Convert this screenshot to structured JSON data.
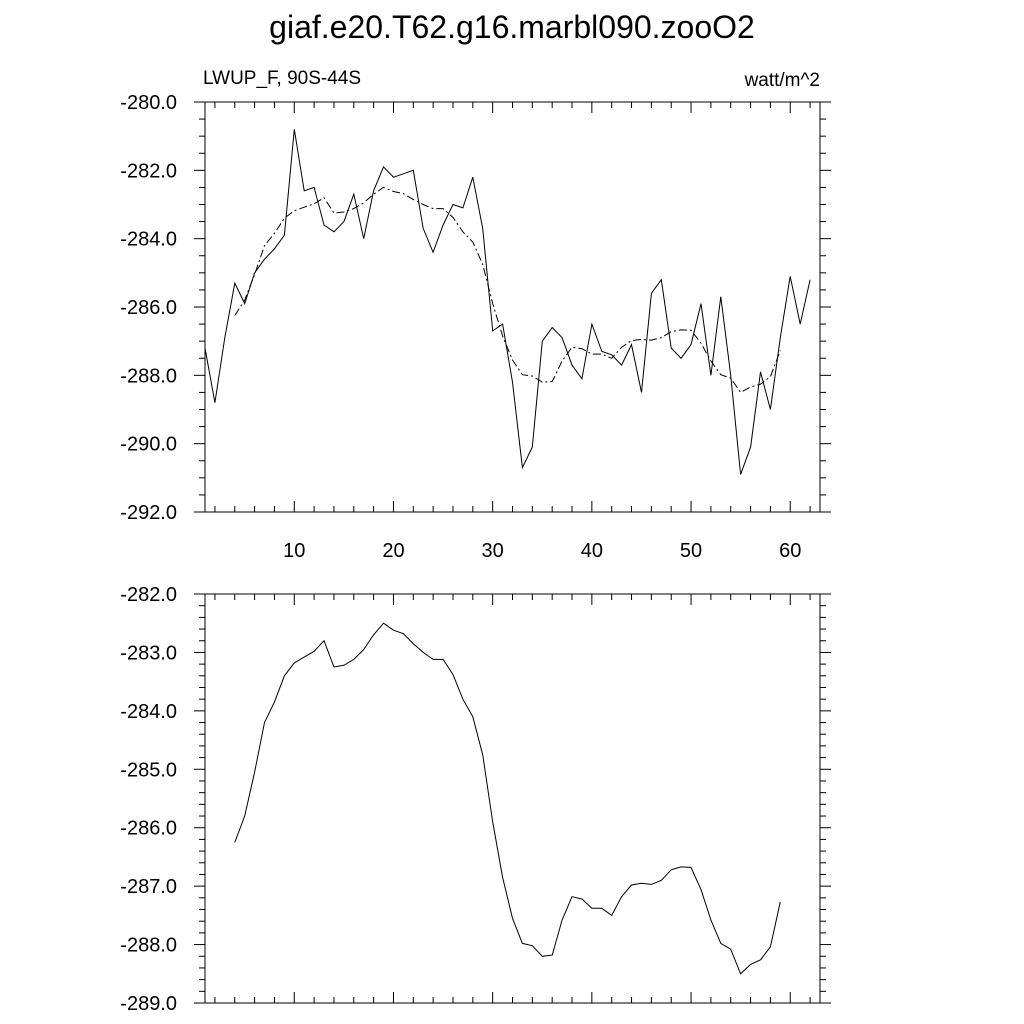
{
  "title": "giaf.e20.T62.g16.marbl090.zooO2",
  "chart_data": [
    {
      "type": "line",
      "left_label": "LWUP_F, 90S-44S",
      "right_label": "watt/m^2",
      "xlim": [
        1,
        63
      ],
      "ylim": [
        -292,
        -280
      ],
      "x_ticks": [
        10,
        20,
        30,
        40,
        50,
        60
      ],
      "y_ticks": [
        -280,
        -282,
        -284,
        -286,
        -288,
        -290,
        -292
      ],
      "y_tick_labels": [
        "-280.0",
        "-282.0",
        "-284.0",
        "-286.0",
        "-288.0",
        "-290.0",
        "-292.0"
      ],
      "series": [
        {
          "style": "solid",
          "x": [
            1,
            2,
            3,
            4,
            5,
            6,
            7,
            8,
            9,
            10,
            11,
            12,
            13,
            14,
            15,
            16,
            17,
            18,
            19,
            20,
            21,
            22,
            23,
            24,
            25,
            26,
            27,
            28,
            29,
            30,
            31,
            32,
            33,
            34,
            35,
            36,
            37,
            38,
            39,
            40,
            41,
            42,
            43,
            44,
            45,
            46,
            47,
            48,
            49,
            50,
            51,
            52,
            53,
            54,
            55,
            56,
            57,
            58,
            59,
            60,
            61,
            62
          ],
          "values": [
            -287.2,
            -288.8,
            -286.9,
            -285.3,
            -285.9,
            -285.0,
            -284.6,
            -284.3,
            -283.9,
            -280.8,
            -282.6,
            -282.5,
            -283.6,
            -283.8,
            -283.5,
            -282.7,
            -284.0,
            -282.6,
            -281.9,
            -282.2,
            -282.1,
            -282.0,
            -283.7,
            -284.4,
            -283.6,
            -283.0,
            -283.1,
            -282.2,
            -283.7,
            -286.7,
            -286.5,
            -288.2,
            -290.7,
            -290.1,
            -287.0,
            -286.6,
            -286.9,
            -287.7,
            -288.1,
            -286.5,
            -287.3,
            -287.4,
            -287.7,
            -287.1,
            -288.5,
            -285.6,
            -285.2,
            -287.2,
            -287.5,
            -287.1,
            -285.9,
            -288.0,
            -285.7,
            -288.0,
            -290.9,
            -290.1,
            -287.9,
            -289.0,
            -286.9,
            -285.1,
            -286.5,
            -285.2
          ]
        },
        {
          "style": "dash-dot",
          "x": [
            4,
            5,
            6,
            7,
            8,
            9,
            10,
            11,
            12,
            13,
            14,
            15,
            16,
            17,
            18,
            19,
            20,
            21,
            22,
            23,
            24,
            25,
            26,
            27,
            28,
            29,
            30,
            31,
            32,
            33,
            34,
            35,
            36,
            37,
            38,
            39,
            40,
            41,
            42,
            43,
            44,
            45,
            46,
            47,
            48,
            49,
            50,
            51,
            52,
            53,
            54,
            55,
            56,
            57,
            58,
            59
          ],
          "values": [
            -286.25,
            -285.8,
            -285.05,
            -284.2,
            -283.85,
            -283.4,
            -283.18,
            -283.08,
            -282.98,
            -282.8,
            -283.25,
            -283.22,
            -283.12,
            -282.95,
            -282.7,
            -282.5,
            -282.62,
            -282.68,
            -282.85,
            -283.0,
            -283.12,
            -283.12,
            -283.38,
            -283.8,
            -284.1,
            -284.75,
            -285.9,
            -286.85,
            -287.55,
            -287.98,
            -288.02,
            -288.2,
            -288.18,
            -287.58,
            -287.18,
            -287.22,
            -287.38,
            -287.38,
            -287.5,
            -287.18,
            -286.98,
            -286.95,
            -286.97,
            -286.9,
            -286.72,
            -286.67,
            -286.68,
            -287.06,
            -287.58,
            -287.98,
            -288.08,
            -288.5,
            -288.34,
            -288.26,
            -288.04,
            -287.27
          ]
        }
      ]
    },
    {
      "type": "line",
      "xlim": [
        1,
        63
      ],
      "ylim": [
        -289,
        -282
      ],
      "x_ticks": [
        10,
        20,
        30,
        40,
        50,
        60
      ],
      "y_ticks": [
        -282,
        -283,
        -284,
        -285,
        -286,
        -287,
        -288,
        -289
      ],
      "y_tick_labels": [
        "-282.0",
        "-283.0",
        "-284.0",
        "-285.0",
        "-286.0",
        "-287.0",
        "-288.0",
        "-289.0"
      ],
      "series": [
        {
          "style": "solid",
          "x": [
            4,
            5,
            6,
            7,
            8,
            9,
            10,
            11,
            12,
            13,
            14,
            15,
            16,
            17,
            18,
            19,
            20,
            21,
            22,
            23,
            24,
            25,
            26,
            27,
            28,
            29,
            30,
            31,
            32,
            33,
            34,
            35,
            36,
            37,
            38,
            39,
            40,
            41,
            42,
            43,
            44,
            45,
            46,
            47,
            48,
            49,
            50,
            51,
            52,
            53,
            54,
            55,
            56,
            57,
            58,
            59
          ],
          "values": [
            -286.25,
            -285.8,
            -285.05,
            -284.2,
            -283.85,
            -283.4,
            -283.18,
            -283.08,
            -282.98,
            -282.8,
            -283.25,
            -283.22,
            -283.12,
            -282.95,
            -282.7,
            -282.5,
            -282.62,
            -282.68,
            -282.85,
            -283.0,
            -283.12,
            -283.12,
            -283.38,
            -283.8,
            -284.1,
            -284.75,
            -285.9,
            -286.85,
            -287.55,
            -287.98,
            -288.02,
            -288.2,
            -288.18,
            -287.58,
            -287.18,
            -287.22,
            -287.38,
            -287.38,
            -287.5,
            -287.18,
            -286.98,
            -286.95,
            -286.97,
            -286.9,
            -286.72,
            -286.67,
            -286.68,
            -287.06,
            -287.58,
            -287.98,
            -288.08,
            -288.5,
            -288.34,
            -288.26,
            -288.04,
            -287.27
          ]
        }
      ]
    }
  ]
}
